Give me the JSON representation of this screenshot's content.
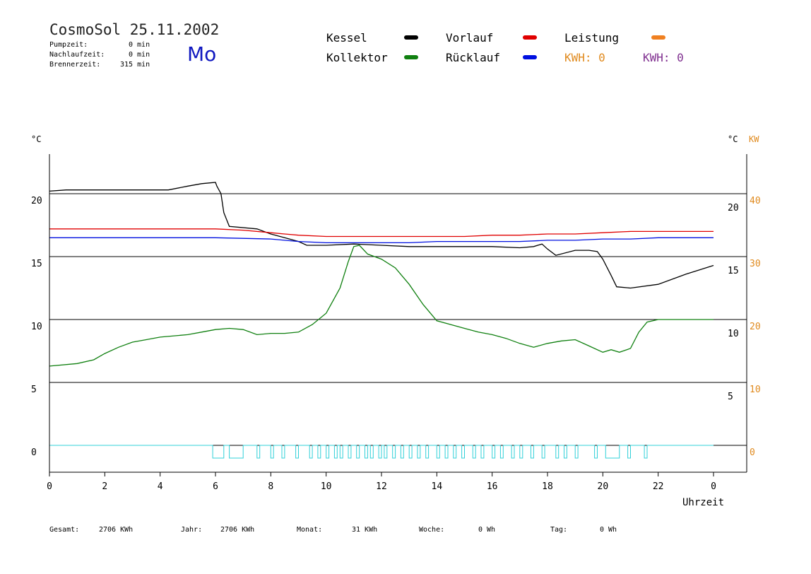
{
  "header": {
    "title": "CosmoSol 25.11.2002",
    "day": "Mo",
    "stats": [
      {
        "label": "Pumpzeit:",
        "value": "0 min"
      },
      {
        "label": "Nachlaufzeit:",
        "value": "0 min"
      },
      {
        "label": "Brennerzeit:",
        "value": "315 min"
      }
    ]
  },
  "legend": {
    "kessel": {
      "label": "Kessel",
      "color": "#000000"
    },
    "vorlauf": {
      "label": "Vorlauf",
      "color": "#e00000"
    },
    "leistung": {
      "label": "Leistung",
      "color": "#f08020"
    },
    "kollektor": {
      "label": "Kollektor",
      "color": "#108010"
    },
    "ruecklauf": {
      "label": "Rücklauf",
      "color": "#0010e0"
    },
    "kwh1": {
      "label": "KWH: 0",
      "color": "#e08a1e"
    },
    "kwh2": {
      "label": "KWH: 0",
      "color": "#803090"
    }
  },
  "footer": {
    "gesamt": {
      "label": "Gesamt:",
      "value": "2706 KWh"
    },
    "jahr": {
      "label": "Jahr:",
      "value": "2706 KWh"
    },
    "monat": {
      "label": "Monat:",
      "value": "31 KWh"
    },
    "woche": {
      "label": "Woche:",
      "value": "0 Wh"
    },
    "tag": {
      "label": "Tag:",
      "value": "0 Wh"
    }
  },
  "chart_data": {
    "type": "line",
    "xlabel": "Uhrzeit",
    "xlim": [
      0,
      24
    ],
    "xticks": [
      "0",
      "2",
      "4",
      "6",
      "8",
      "10",
      "12",
      "14",
      "16",
      "18",
      "20",
      "22",
      "0"
    ],
    "ylabel_left": "°C",
    "ylabel_right": "°C",
    "ylabel_right2": "KW",
    "ylim": [
      -2,
      23
    ],
    "yticks_left": [
      "0",
      "5",
      "10",
      "15",
      "20"
    ],
    "yticks_right": [
      "5",
      "10",
      "15",
      "20"
    ],
    "yticks_right2": [
      "0",
      "10",
      "20",
      "30",
      "40"
    ],
    "gridlines_y": [
      0,
      5,
      10,
      15,
      20
    ],
    "series": [
      {
        "name": "Kessel",
        "color": "#000000",
        "x": [
          0,
          0.6,
          4.3,
          5,
          5.5,
          6,
          6.05,
          6.2,
          6.3,
          6.5,
          7.5,
          8,
          8.5,
          9,
          9.3,
          10,
          11,
          12,
          13,
          14,
          15,
          16,
          17,
          17.5,
          17.8,
          18,
          18.3,
          19,
          19.5,
          19.8,
          20,
          20.3,
          20.5,
          21,
          22,
          23,
          24
        ],
        "y": [
          20.2,
          20.3,
          20.3,
          20.6,
          20.8,
          20.9,
          20.6,
          20,
          18.5,
          17.4,
          17.2,
          16.8,
          16.5,
          16.2,
          15.9,
          15.9,
          16,
          15.9,
          15.8,
          15.8,
          15.8,
          15.8,
          15.7,
          15.8,
          16,
          15.6,
          15.1,
          15.5,
          15.5,
          15.4,
          14.8,
          13.5,
          12.6,
          12.5,
          12.8,
          13.6,
          14.3
        ]
      },
      {
        "name": "Vorlauf",
        "color": "#e00000",
        "x": [
          0,
          2,
          4,
          6,
          7,
          8,
          8.5,
          9,
          10,
          11,
          12,
          13,
          14,
          15,
          16,
          17,
          18,
          19,
          20,
          21,
          22,
          23,
          24
        ],
        "y": [
          17.2,
          17.2,
          17.2,
          17.2,
          17.1,
          16.9,
          16.8,
          16.7,
          16.6,
          16.6,
          16.6,
          16.6,
          16.6,
          16.6,
          16.7,
          16.7,
          16.8,
          16.8,
          16.9,
          17,
          17,
          17,
          17
        ]
      },
      {
        "name": "Rücklauf",
        "color": "#0010e0",
        "x": [
          0,
          2,
          4,
          6,
          8,
          9,
          10,
          11,
          12,
          13,
          14,
          15,
          16,
          17,
          18,
          19,
          20,
          21,
          22,
          23,
          24
        ],
        "y": [
          16.5,
          16.5,
          16.5,
          16.5,
          16.4,
          16.2,
          16.1,
          16.1,
          16.1,
          16.1,
          16.2,
          16.2,
          16.2,
          16.2,
          16.3,
          16.3,
          16.4,
          16.4,
          16.5,
          16.5,
          16.5
        ]
      },
      {
        "name": "Kollektor",
        "color": "#108010",
        "x": [
          0,
          1,
          1.6,
          2,
          2.5,
          3,
          3.5,
          4,
          4.5,
          5,
          5.5,
          6,
          6.5,
          7,
          7.5,
          8,
          8.5,
          9,
          9.5,
          10,
          10.5,
          10.8,
          11,
          11.2,
          11.5,
          12,
          12.5,
          13,
          13.5,
          14,
          14.5,
          15,
          15.5,
          16,
          16.5,
          17,
          17.5,
          18,
          18.5,
          19,
          19.5,
          20,
          20.3,
          20.6,
          21,
          21.3,
          21.6,
          22,
          22.5,
          23,
          23.5,
          24
        ],
        "y": [
          6.3,
          6.5,
          6.8,
          7.3,
          7.8,
          8.2,
          8.4,
          8.6,
          8.7,
          8.8,
          9,
          9.2,
          9.3,
          9.2,
          8.8,
          8.9,
          8.9,
          9,
          9.6,
          10.5,
          12.5,
          14.6,
          15.8,
          15.9,
          15.2,
          14.8,
          14.1,
          12.8,
          11.2,
          9.9,
          9.6,
          9.3,
          9,
          8.8,
          8.5,
          8.1,
          7.8,
          8.1,
          8.3,
          8.4,
          7.9,
          7.4,
          7.6,
          7.4,
          7.7,
          9,
          9.8,
          10,
          10,
          10,
          10,
          10
        ]
      }
    ],
    "pump_signal": {
      "name": "Pumpe",
      "color": "#30d0d8",
      "on_intervals": [
        [
          5.9,
          6.3
        ],
        [
          6.5,
          7
        ],
        [
          7.5,
          7.6
        ],
        [
          8,
          8.1
        ],
        [
          8.4,
          8.5
        ],
        [
          8.9,
          9
        ],
        [
          9.4,
          9.5
        ],
        [
          9.7,
          9.8
        ],
        [
          10,
          10.1
        ],
        [
          10.3,
          10.4
        ],
        [
          10.5,
          10.6
        ],
        [
          10.8,
          10.9
        ],
        [
          11.1,
          11.2
        ],
        [
          11.4,
          11.5
        ],
        [
          11.6,
          11.7
        ],
        [
          11.9,
          12
        ],
        [
          12.1,
          12.2
        ],
        [
          12.4,
          12.5
        ],
        [
          12.7,
          12.8
        ],
        [
          13,
          13.1
        ],
        [
          13.3,
          13.4
        ],
        [
          13.6,
          13.7
        ],
        [
          14,
          14.1
        ],
        [
          14.3,
          14.4
        ],
        [
          14.6,
          14.7
        ],
        [
          14.9,
          15
        ],
        [
          15.3,
          15.4
        ],
        [
          15.6,
          15.7
        ],
        [
          16,
          16.1
        ],
        [
          16.3,
          16.4
        ],
        [
          16.7,
          16.8
        ],
        [
          17,
          17.1
        ],
        [
          17.4,
          17.5
        ],
        [
          17.8,
          17.9
        ],
        [
          18.3,
          18.4
        ],
        [
          18.6,
          18.7
        ],
        [
          19,
          19.1
        ],
        [
          19.7,
          19.8
        ],
        [
          20.1,
          20.6
        ],
        [
          20.9,
          21
        ],
        [
          21.5,
          21.6
        ]
      ]
    }
  }
}
